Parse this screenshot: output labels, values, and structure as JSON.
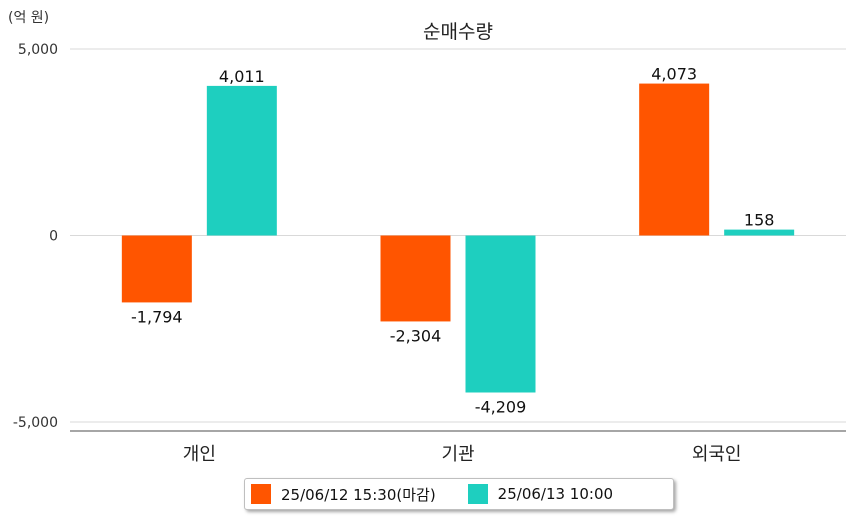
{
  "chart_data": {
    "type": "bar",
    "title": "순매수량",
    "unit_label": "(억 원)",
    "categories": [
      "개인",
      "기관",
      "외국인"
    ],
    "series": [
      {
        "name": "25/06/12 15:30(마감)",
        "color": "#ff5500",
        "values": [
          -1794,
          -2304,
          4073
        ],
        "labels": [
          "-1,794",
          "-2,304",
          "4,073"
        ]
      },
      {
        "name": "25/06/13 10:00",
        "color": "#1ecfbf",
        "values": [
          4011,
          -4209,
          158
        ],
        "labels": [
          "4,011",
          "-4,209",
          "158"
        ]
      }
    ],
    "y_ticks": [
      {
        "value": 5000,
        "label": "5,000"
      },
      {
        "value": 0,
        "label": "0"
      },
      {
        "value": -5000,
        "label": "-5,000"
      }
    ],
    "ylim": [
      -5000,
      5000
    ],
    "grid": true,
    "legend_position": "bottom"
  }
}
